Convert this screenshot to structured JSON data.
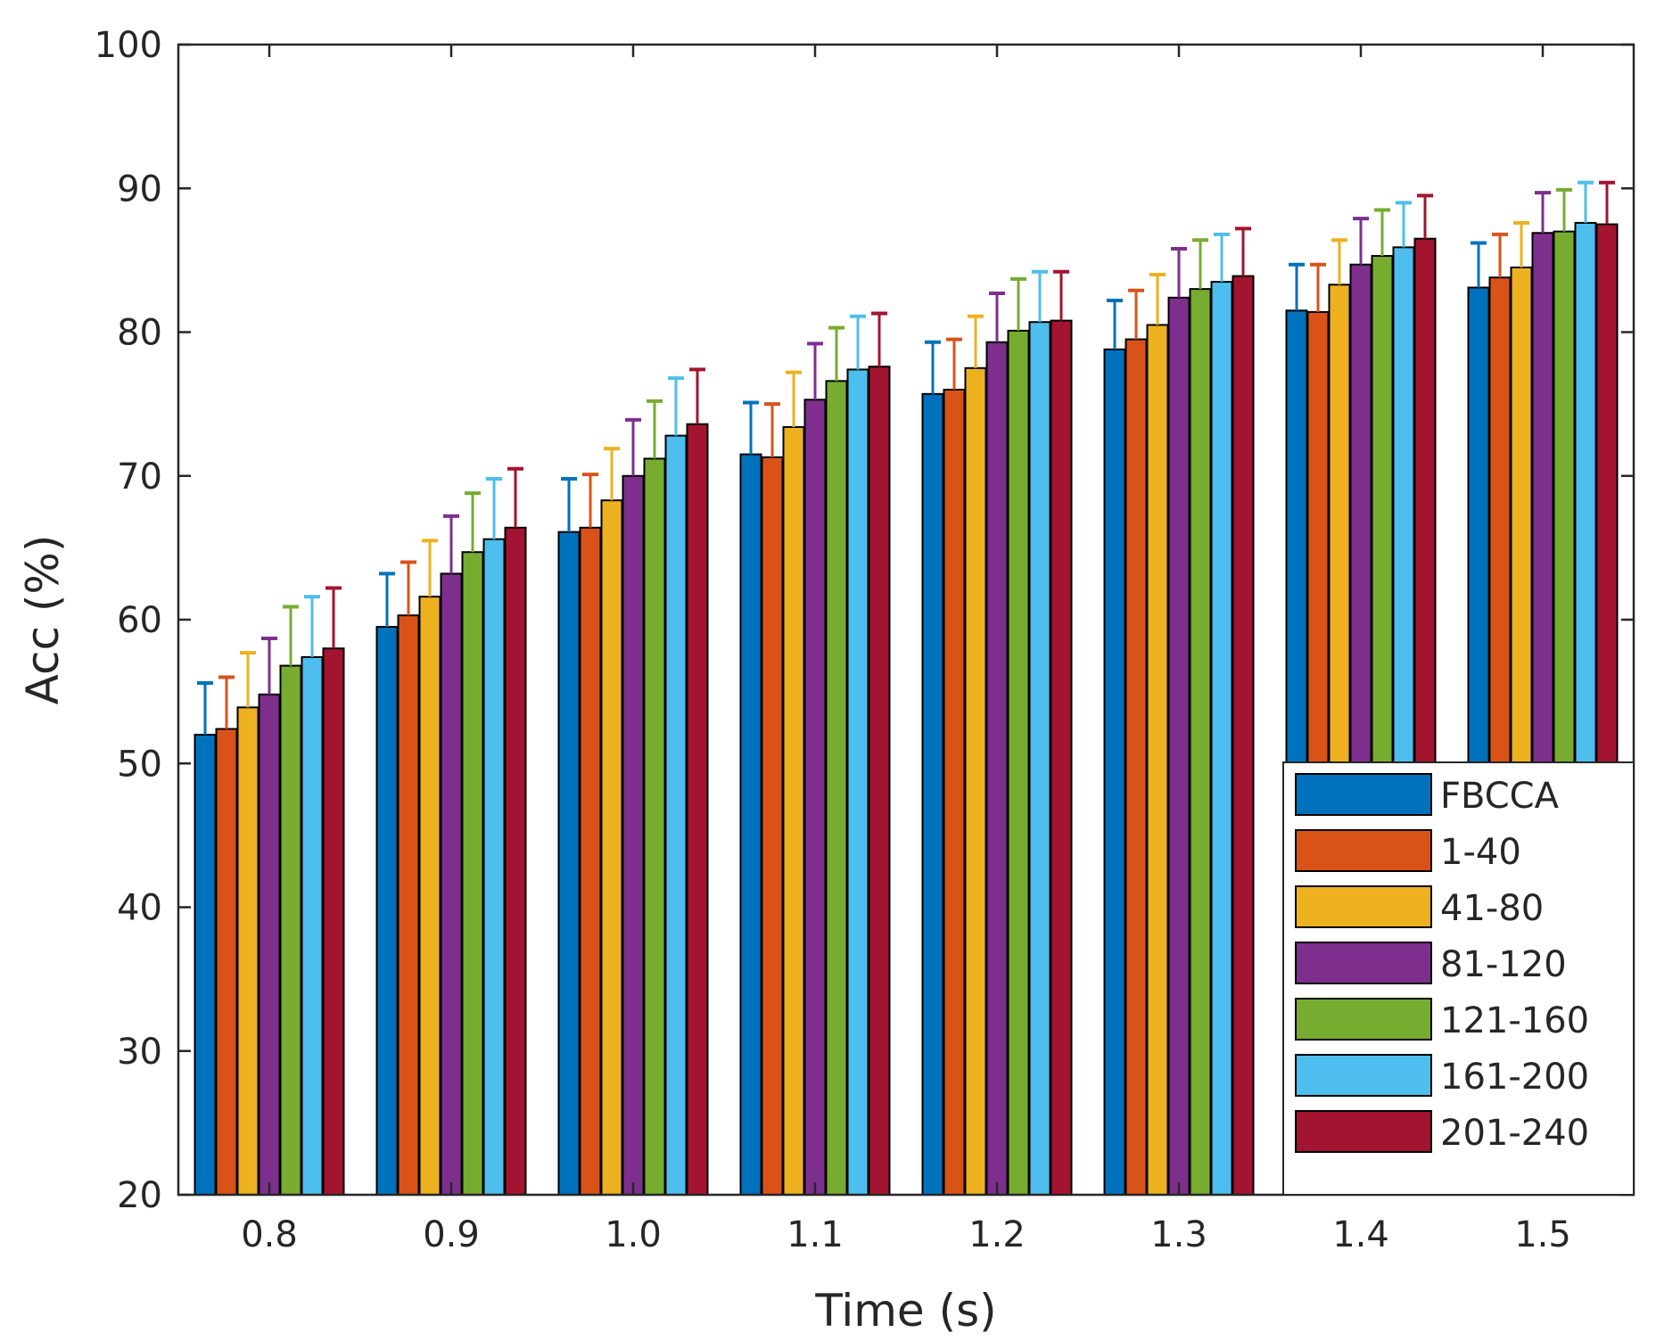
{
  "chart_data": {
    "type": "bar",
    "xlabel": "Time (s)",
    "ylabel": "Acc (%)",
    "ylim": [
      20,
      100
    ],
    "yticks": [
      "20",
      "30",
      "40",
      "50",
      "60",
      "70",
      "80",
      "90",
      "100"
    ],
    "categories": [
      "0.8",
      "0.9",
      "1.0",
      "1.1",
      "1.2",
      "1.3",
      "1.4",
      "1.5"
    ],
    "error_bars": "upper",
    "legend_position": "bottom-right",
    "grid": false,
    "series": [
      {
        "name": "FBCCA",
        "color": "#0072BD",
        "values": [
          52.0,
          59.5,
          66.1,
          71.5,
          75.7,
          78.8,
          81.5,
          83.1
        ],
        "upper": [
          55.6,
          63.2,
          69.8,
          75.1,
          79.3,
          82.2,
          84.7,
          86.2
        ]
      },
      {
        "name": "1-40",
        "color": "#D95319",
        "values": [
          52.4,
          60.3,
          66.4,
          71.3,
          76.0,
          79.5,
          81.4,
          83.8
        ],
        "upper": [
          56.0,
          64.0,
          70.1,
          75.0,
          79.5,
          82.9,
          84.7,
          86.8
        ]
      },
      {
        "name": "41-80",
        "color": "#EDB120",
        "values": [
          53.9,
          61.6,
          68.3,
          73.4,
          77.5,
          80.5,
          83.3,
          84.5
        ],
        "upper": [
          57.7,
          65.5,
          71.9,
          77.2,
          81.1,
          84.0,
          86.4,
          87.6
        ]
      },
      {
        "name": "81-120",
        "color": "#7E2F8E",
        "values": [
          54.8,
          63.2,
          70.0,
          75.3,
          79.3,
          82.4,
          84.7,
          86.9
        ],
        "upper": [
          58.7,
          67.2,
          73.9,
          79.2,
          82.7,
          85.8,
          87.9,
          89.7
        ]
      },
      {
        "name": "121-160",
        "color": "#77AC30",
        "values": [
          56.8,
          64.7,
          71.2,
          76.6,
          80.1,
          83.0,
          85.3,
          87.0
        ],
        "upper": [
          60.9,
          68.8,
          75.2,
          80.3,
          83.7,
          86.4,
          88.5,
          89.9
        ]
      },
      {
        "name": "161-200",
        "color": "#4DBEEE",
        "values": [
          57.4,
          65.6,
          72.8,
          77.4,
          80.7,
          83.5,
          85.9,
          87.6
        ],
        "upper": [
          61.6,
          69.8,
          76.8,
          81.1,
          84.2,
          86.8,
          89.0,
          90.4
        ]
      },
      {
        "name": "201-240",
        "color": "#A2142F",
        "values": [
          58.0,
          66.4,
          73.6,
          77.6,
          80.8,
          83.9,
          86.5,
          87.5
        ],
        "upper": [
          62.2,
          70.5,
          77.4,
          81.3,
          84.2,
          87.2,
          89.5,
          90.4
        ]
      }
    ]
  }
}
